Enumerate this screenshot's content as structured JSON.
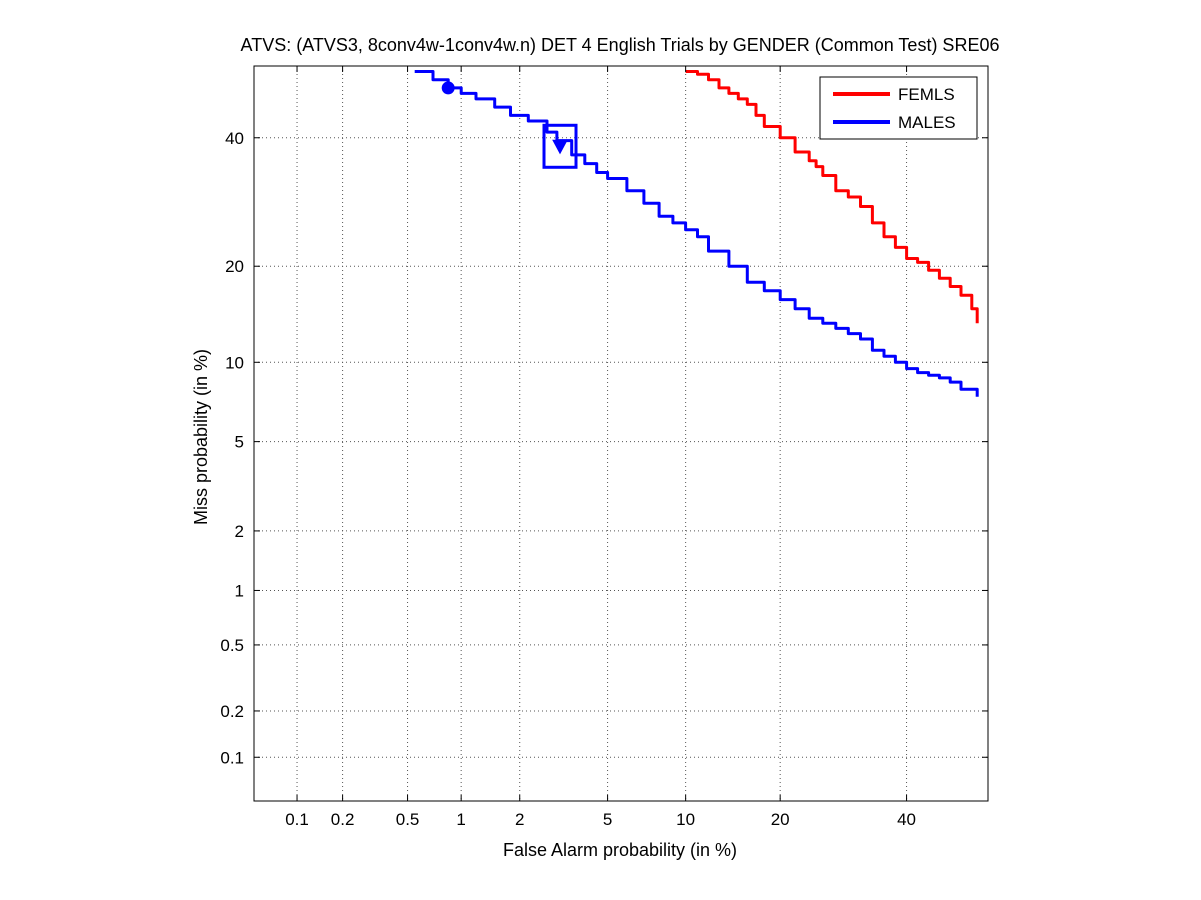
{
  "chart_data": {
    "type": "line",
    "title": "ATVS: (ATVS3, 8conv4w-1conv4w.n) DET 4 English Trials by GENDER (Common Test) SRE06",
    "xlabel": "False Alarm probability (in %)",
    "ylabel": "Miss probability (in %)",
    "x_scale": "probit",
    "y_scale": "probit",
    "xlim": [
      0.05,
      55
    ],
    "ylim": [
      0.05,
      53
    ],
    "x_ticks": [
      0.1,
      0.2,
      0.5,
      1,
      2,
      5,
      10,
      20,
      40
    ],
    "x_tick_labels": [
      "0.1",
      "0.2",
      "0.5",
      "1",
      "2",
      "5",
      "10",
      "20",
      "40"
    ],
    "y_ticks": [
      0.1,
      0.2,
      0.5,
      1,
      2,
      5,
      10,
      20,
      40
    ],
    "y_tick_labels": [
      "0.1",
      "0.2",
      "0.5",
      "1",
      "2",
      "5",
      "10",
      "20",
      "40"
    ],
    "grid": true,
    "legend_position": "top-right",
    "series": [
      {
        "name": "FEMLS",
        "color": "#ff0000",
        "x": [
          10,
          11,
          12,
          13,
          14,
          15,
          16,
          17,
          18,
          20,
          22,
          24,
          25,
          26,
          28,
          30,
          32,
          34,
          36,
          38,
          40,
          42,
          44,
          46,
          48,
          50,
          52,
          53
        ],
        "y": [
          52,
          51.5,
          50.5,
          49,
          48,
          47,
          46,
          44,
          42,
          40,
          37.5,
          36,
          35,
          33.5,
          31,
          30,
          28.5,
          26,
          24,
          22.5,
          21,
          20.5,
          19.5,
          18.5,
          17.5,
          16.5,
          15,
          13.5
        ]
      },
      {
        "name": "MALES",
        "color": "#0000ff",
        "x": [
          0.55,
          0.7,
          0.85,
          1,
          1.2,
          1.5,
          1.8,
          2.2,
          2.7,
          3,
          3.5,
          4,
          4.5,
          5,
          6,
          7,
          8,
          9,
          10,
          11,
          12,
          14,
          16,
          18,
          20,
          22,
          24,
          26,
          28,
          30,
          32,
          34,
          36,
          38,
          40,
          42,
          44,
          46,
          48,
          50,
          53
        ],
        "y": [
          52,
          50.5,
          49,
          48,
          47,
          45.5,
          44,
          43,
          41,
          39.5,
          37,
          35.5,
          34,
          33,
          31,
          29,
          27,
          26,
          25,
          24,
          22,
          20,
          18,
          17,
          16,
          15,
          14,
          13.5,
          13,
          12.5,
          12,
          11,
          10.5,
          10,
          9.5,
          9.2,
          9,
          8.8,
          8.5,
          8,
          7.5
        ]
      }
    ],
    "markers": [
      {
        "series": "MALES",
        "shape": "circle",
        "x": 0.85,
        "y": 49
      },
      {
        "series": "MALES",
        "shape": "triangle-down",
        "x": 3.1,
        "y": 38.5
      },
      {
        "series": "MALES",
        "shape": "square",
        "x": 3.1,
        "y": 38.5
      }
    ]
  }
}
